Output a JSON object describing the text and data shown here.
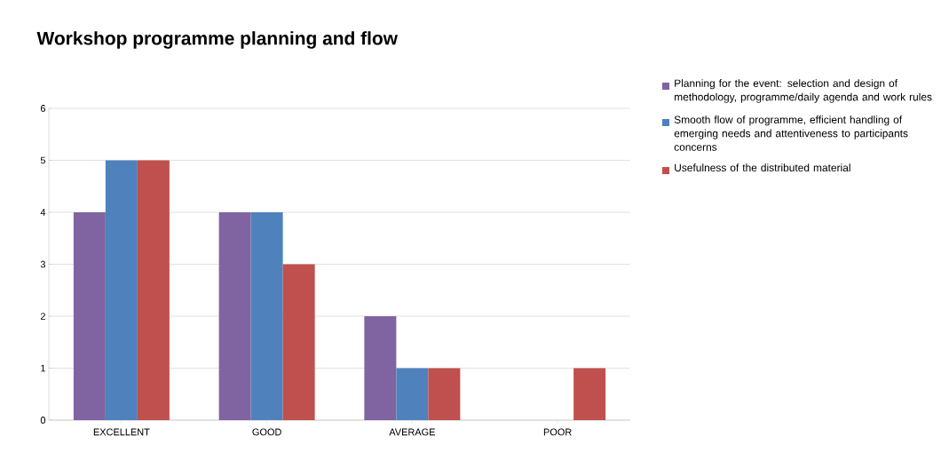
{
  "chart_data": {
    "type": "bar",
    "title": "Workshop programme planning and flow",
    "categories": [
      "EXCELLENT",
      "GOOD",
      "AVERAGE",
      "POOR"
    ],
    "series": [
      {
        "name": "Planning for the event: selection and design of methodology, programme/daily agenda and work rules",
        "color": "#8064a2",
        "values": [
          4,
          4,
          2,
          0
        ]
      },
      {
        "name": "Smooth flow of programme, efficient handling of emerging needs and attentiveness to participants concerns",
        "color": "#4f81bd",
        "values": [
          5,
          4,
          1,
          0
        ]
      },
      {
        "name": "Usefulness of the distributed material",
        "color": "#c0504d",
        "values": [
          5,
          3,
          1,
          1
        ]
      }
    ],
    "ylim": [
      0,
      6
    ],
    "yticks": [
      0,
      1,
      2,
      3,
      4,
      5,
      6
    ],
    "grid": "y",
    "legend": "right"
  }
}
